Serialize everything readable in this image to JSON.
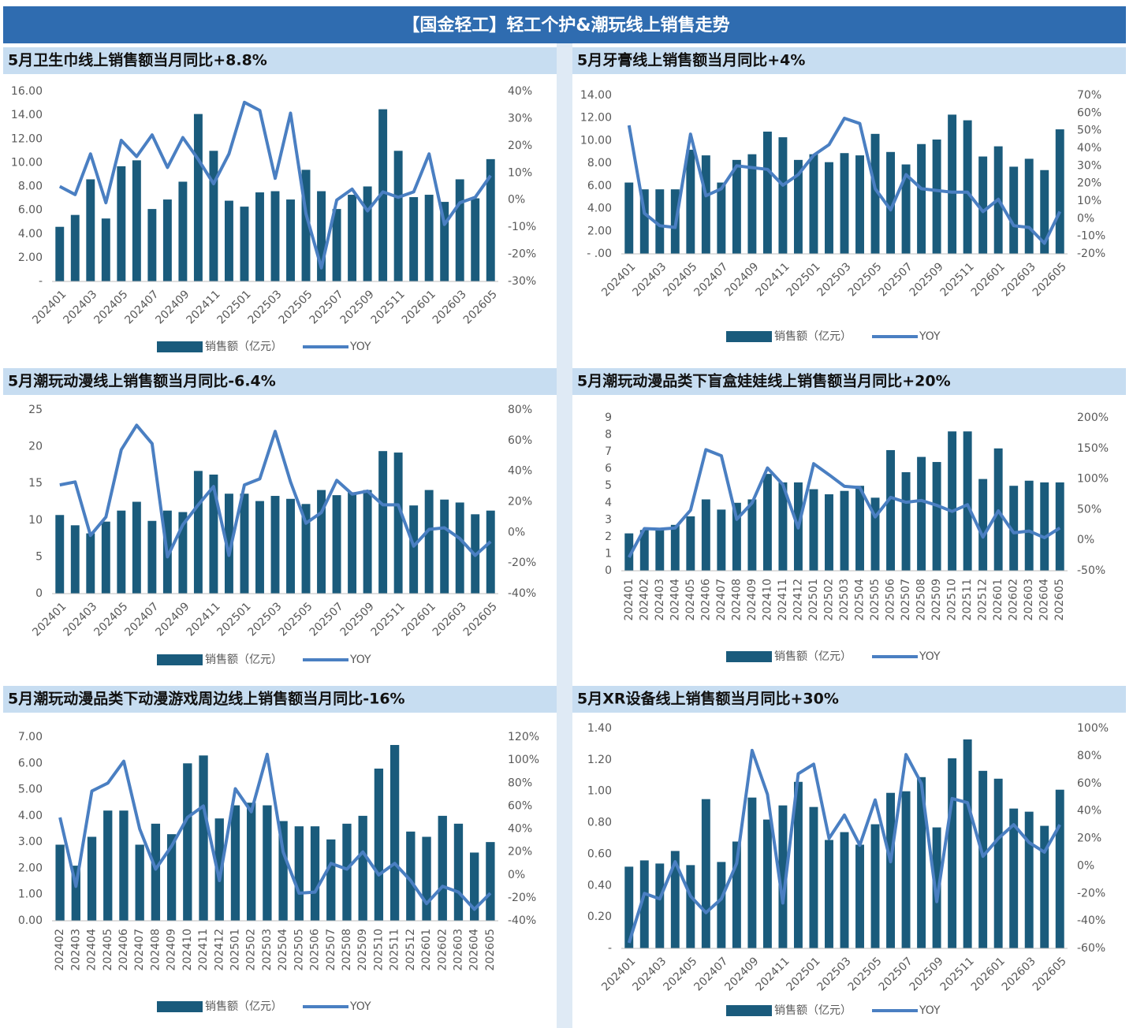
{
  "header": {
    "title": "【国金轻工】轻工个护&潮玩线上销售走势"
  },
  "chart_data": [
    {
      "type": "bar_line",
      "title": "5月卫生巾线上销售额当月同比+8.8%",
      "categories": [
        "202401",
        null,
        "202403",
        null,
        "202405",
        null,
        "202407",
        null,
        "202409",
        null,
        "202411",
        null,
        "202501",
        null,
        "202503",
        null,
        "202505",
        null,
        "202507",
        null,
        "202509",
        null,
        "202511",
        null,
        "202601",
        null,
        "202603",
        null,
        "202605"
      ],
      "series": [
        {
          "name": "销售额（亿元）",
          "color": "#1a5b7c",
          "values": [
            4.6,
            5.6,
            8.6,
            5.3,
            9.7,
            10.2,
            6.1,
            6.9,
            8.4,
            14.1,
            11.0,
            6.8,
            6.3,
            7.5,
            7.6,
            6.9,
            9.4,
            7.6,
            6.1,
            7.3,
            8.0,
            14.5,
            11.0,
            7.1,
            7.3,
            6.7,
            8.6,
            7.0,
            10.3
          ]
        },
        {
          "name": "YOY",
          "color": "#4a7fc2",
          "axis": "y2",
          "values": [
            5,
            2,
            17,
            -1,
            22,
            16,
            24,
            12,
            23,
            15,
            6,
            17,
            36,
            33,
            8,
            32,
            -5,
            -25,
            0,
            4,
            -4,
            3,
            1,
            3,
            17,
            -9,
            -1,
            1,
            9
          ]
        }
      ],
      "ylim": [
        0,
        16
      ],
      "yticks": [
        {
          "value": 0,
          "label": "-"
        },
        {
          "value": 2,
          "label": "2.00"
        },
        {
          "value": 4,
          "label": "4.00"
        },
        {
          "value": 6,
          "label": "6.00"
        },
        {
          "value": 8,
          "label": "8.00"
        },
        {
          "value": 10,
          "label": "10.00"
        },
        {
          "value": 12,
          "label": "12.00"
        },
        {
          "value": 14,
          "label": "14.00"
        },
        {
          "value": 16,
          "label": "16.00"
        }
      ],
      "y2lim": [
        -30,
        40
      ],
      "y2ticks": [
        {
          "value": -30,
          "label": "-30%"
        },
        {
          "value": -20,
          "label": "-20%"
        },
        {
          "value": -10,
          "label": "-10%"
        },
        {
          "value": 0,
          "label": "0%"
        },
        {
          "value": 10,
          "label": "10%"
        },
        {
          "value": 20,
          "label": "20%"
        },
        {
          "value": 30,
          "label": "30%"
        },
        {
          "value": 40,
          "label": "40%"
        }
      ]
    },
    {
      "type": "bar_line",
      "title": "5月牙膏线上销售额当月同比+4%",
      "categories": [
        "202401",
        null,
        "202403",
        null,
        "202405",
        null,
        "202407",
        null,
        "202409",
        null,
        "202411",
        null,
        "202501",
        null,
        "202503",
        null,
        "202505",
        null,
        "202507",
        null,
        "202509",
        null,
        "202511",
        null,
        "202601",
        null,
        "202603",
        null,
        "202605"
      ],
      "series": [
        {
          "name": "销售额（亿元）",
          "color": "#1a5b7c",
          "values": [
            6.3,
            5.7,
            5.7,
            5.7,
            9.2,
            8.7,
            6.3,
            8.3,
            8.8,
            10.8,
            10.3,
            8.3,
            8.8,
            8.1,
            8.9,
            8.7,
            10.6,
            9.0,
            7.9,
            9.7,
            10.1,
            12.3,
            11.8,
            8.6,
            9.5,
            7.7,
            8.4,
            7.4,
            11.0
          ]
        },
        {
          "name": "YOY",
          "color": "#4a7fc2",
          "axis": "y2",
          "values": [
            53,
            3,
            -4,
            -5,
            48,
            13,
            17,
            30,
            29,
            28,
            19,
            25,
            36,
            42,
            57,
            54,
            17,
            5,
            25,
            17,
            16,
            15,
            15,
            4,
            11,
            -4,
            -5,
            -14,
            4
          ]
        }
      ],
      "ylim": [
        0,
        14
      ],
      "yticks": [
        {
          "value": 0,
          "label": "- .00"
        },
        {
          "value": 2,
          "label": "2.00"
        },
        {
          "value": 4,
          "label": "4.00"
        },
        {
          "value": 6,
          "label": "6.00"
        },
        {
          "value": 8,
          "label": "8.00"
        },
        {
          "value": 10,
          "label": "10.00"
        },
        {
          "value": 12,
          "label": "12.00"
        },
        {
          "value": 14,
          "label": "14.00"
        }
      ],
      "y2lim": [
        -20,
        70
      ],
      "y2ticks": [
        {
          "value": -20,
          "label": "-20%"
        },
        {
          "value": -10,
          "label": "-10%"
        },
        {
          "value": 0,
          "label": "0%"
        },
        {
          "value": 10,
          "label": "10%"
        },
        {
          "value": 20,
          "label": "20%"
        },
        {
          "value": 30,
          "label": "30%"
        },
        {
          "value": 40,
          "label": "40%"
        },
        {
          "value": 50,
          "label": "50%"
        },
        {
          "value": 60,
          "label": "60%"
        },
        {
          "value": 70,
          "label": "70%"
        }
      ]
    },
    {
      "type": "bar_line",
      "title": "5月潮玩动漫线上销售额当月同比-6.4%",
      "categories": [
        "202401",
        null,
        "202403",
        null,
        "202405",
        null,
        "202407",
        null,
        "202409",
        null,
        "202411",
        null,
        "202501",
        null,
        "202503",
        null,
        "202505",
        null,
        "202507",
        null,
        "202509",
        null,
        "202511",
        null,
        "202601",
        null,
        "202603",
        null,
        "202605"
      ],
      "series": [
        {
          "name": "销售额（亿元）",
          "color": "#1a5b7c",
          "values": [
            10.7,
            9.3,
            8.2,
            9.8,
            11.3,
            12.5,
            9.9,
            11.3,
            11.1,
            16.7,
            16.2,
            13.6,
            13.6,
            12.6,
            13.3,
            12.9,
            12.2,
            14.1,
            13.4,
            13.8,
            14.1,
            19.4,
            19.2,
            12.0,
            14.1,
            12.8,
            12.4,
            10.8,
            11.3
          ]
        },
        {
          "name": "YOY",
          "color": "#4a7fc2",
          "axis": "y2",
          "values": [
            31,
            33,
            -2,
            10,
            54,
            70,
            58,
            -16,
            5,
            18,
            30,
            -15,
            31,
            35,
            66,
            33,
            6,
            13,
            34,
            25,
            27,
            18,
            18,
            -9,
            2,
            3,
            -4,
            -15,
            -6
          ]
        }
      ],
      "ylim": [
        0,
        25
      ],
      "yticks": [
        0,
        5,
        10,
        15,
        20,
        25
      ],
      "y2lim": [
        -40,
        80
      ],
      "y2ticks": [
        {
          "value": -40,
          "label": "-40%"
        },
        {
          "value": -20,
          "label": "-20%"
        },
        {
          "value": 0,
          "label": "0%"
        },
        {
          "value": 20,
          "label": "20%"
        },
        {
          "value": 40,
          "label": "40%"
        },
        {
          "value": 60,
          "label": "60%"
        },
        {
          "value": 80,
          "label": "80%"
        }
      ]
    },
    {
      "type": "bar_line",
      "title": "5月潮玩动漫品类下盲盒娃娃线上销售额当月同比+20%",
      "categories": [
        "202401",
        "202402",
        "202403",
        "202404",
        "202405",
        "202406",
        "202407",
        "202408",
        "202409",
        "202410",
        "202411",
        "202412",
        "202501",
        "202502",
        "202503",
        "202504",
        "202505",
        "202506",
        "202507",
        "202508",
        "202509",
        "202510",
        "202511",
        "202512",
        "202601",
        "202602",
        "202603",
        "202604",
        "202605"
      ],
      "series": [
        {
          "name": "销售额（亿元）",
          "color": "#1a5b7c",
          "values": [
            2.2,
            2.4,
            2.5,
            2.7,
            3.2,
            4.2,
            3.6,
            4.0,
            4.2,
            5.7,
            5.2,
            5.2,
            4.8,
            4.5,
            4.7,
            5.0,
            4.3,
            7.1,
            5.8,
            6.7,
            6.4,
            8.2,
            8.2,
            5.4,
            7.2,
            5.0,
            5.3,
            5.2,
            5.2
          ]
        },
        {
          "name": "YOY",
          "color": "#4a7fc2",
          "axis": "y2",
          "values": [
            -28,
            19,
            18,
            20,
            49,
            148,
            138,
            34,
            61,
            118,
            91,
            20,
            125,
            107,
            88,
            86,
            38,
            70,
            62,
            65,
            57,
            47,
            58,
            5,
            48,
            12,
            15,
            4,
            20
          ]
        }
      ],
      "ylim": [
        0,
        9
      ],
      "yticks": [
        0,
        1,
        2,
        3,
        4,
        5,
        6,
        7,
        8,
        9
      ],
      "y2lim": [
        -50,
        200
      ],
      "y2ticks": [
        {
          "value": -50,
          "label": "-50%"
        },
        {
          "value": 0,
          "label": "0%"
        },
        {
          "value": 50,
          "label": "50%"
        },
        {
          "value": 100,
          "label": "100%"
        },
        {
          "value": 150,
          "label": "150%"
        },
        {
          "value": 200,
          "label": "200%"
        }
      ]
    },
    {
      "type": "bar_line",
      "title": "5月潮玩动漫品类下动漫游戏周边线上销售额当月同比-16%",
      "categories": [
        "202402",
        "202403",
        "202404",
        "202405",
        "202406",
        "202407",
        "202408",
        "202409",
        "202410",
        "202411",
        "202412",
        "202501",
        "202502",
        "202503",
        "202504",
        "202505",
        "202506",
        "202507",
        "202508",
        "202509",
        "202510",
        "202511",
        "202512",
        "202601",
        "202602",
        "202603",
        "202604",
        "202605"
      ],
      "series": [
        {
          "name": "销售额（亿元）",
          "color": "#1a5b7c",
          "values": [
            2.9,
            2.1,
            3.2,
            4.2,
            4.2,
            2.9,
            3.7,
            3.3,
            6.0,
            6.3,
            3.9,
            4.4,
            4.5,
            4.4,
            3.8,
            3.6,
            3.6,
            3.1,
            3.7,
            4.0,
            5.8,
            6.7,
            3.4,
            3.2,
            4.0,
            3.7,
            2.6,
            3.0
          ]
        },
        {
          "name": "YOY",
          "color": "#4a7fc2",
          "axis": "y2",
          "values": [
            50,
            -10,
            73,
            80,
            99,
            40,
            5,
            25,
            50,
            60,
            -5,
            75,
            55,
            105,
            20,
            -16,
            -15,
            10,
            5,
            20,
            0,
            10,
            -5,
            -25,
            -10,
            -15,
            -30,
            -16
          ]
        }
      ],
      "ylim": [
        0,
        7
      ],
      "yticks": [
        {
          "value": 0,
          "label": "0.00"
        },
        {
          "value": 1,
          "label": "1.00"
        },
        {
          "value": 2,
          "label": "2.00"
        },
        {
          "value": 3,
          "label": "3.00"
        },
        {
          "value": 4,
          "label": "4.00"
        },
        {
          "value": 5,
          "label": "5.00"
        },
        {
          "value": 6,
          "label": "6.00"
        },
        {
          "value": 7,
          "label": "7.00"
        }
      ],
      "y2lim": [
        -40,
        120
      ],
      "y2ticks": [
        {
          "value": -40,
          "label": "-40%"
        },
        {
          "value": -20,
          "label": "-20%"
        },
        {
          "value": 0,
          "label": "0%"
        },
        {
          "value": 20,
          "label": "20%"
        },
        {
          "value": 40,
          "label": "40%"
        },
        {
          "value": 60,
          "label": "60%"
        },
        {
          "value": 80,
          "label": "80%"
        },
        {
          "value": 100,
          "label": "100%"
        },
        {
          "value": 120,
          "label": "120%"
        }
      ]
    },
    {
      "type": "bar_line",
      "title": "5月XR设备线上销售额当月同比+30%",
      "categories": [
        "202401",
        null,
        "202403",
        null,
        "202405",
        null,
        "202407",
        null,
        "202409",
        null,
        "202411",
        null,
        "202501",
        null,
        "202503",
        null,
        "202505",
        null,
        "202507",
        null,
        "202509",
        null,
        "202511",
        null,
        "202601",
        null,
        "202603",
        null,
        "202605"
      ],
      "series": [
        {
          "name": "销售额（亿元）",
          "color": "#1a5b7c",
          "values": [
            0.52,
            0.56,
            0.54,
            0.62,
            0.53,
            0.95,
            0.55,
            0.68,
            0.96,
            0.82,
            0.91,
            1.06,
            0.9,
            0.69,
            0.74,
            0.66,
            0.79,
            0.99,
            1.0,
            1.09,
            0.77,
            1.21,
            1.33,
            1.13,
            1.08,
            0.89,
            0.87,
            0.78,
            1.01
          ]
        },
        {
          "name": "YOY",
          "color": "#4a7fc2",
          "axis": "y2",
          "values": [
            -56,
            -20,
            -24,
            3,
            -22,
            -34,
            -24,
            2,
            84,
            52,
            -27,
            67,
            74,
            20,
            37,
            15,
            48,
            3,
            81,
            60,
            -26,
            49,
            46,
            7,
            20,
            30,
            17,
            10,
            30
          ]
        }
      ],
      "ylim": [
        0,
        1.4
      ],
      "yticks": [
        {
          "value": 0,
          "label": "-"
        },
        {
          "value": 0.2,
          "label": "0.20"
        },
        {
          "value": 0.4,
          "label": "0.40"
        },
        {
          "value": 0.6,
          "label": "0.60"
        },
        {
          "value": 0.8,
          "label": "0.80"
        },
        {
          "value": 1.0,
          "label": "1.00"
        },
        {
          "value": 1.2,
          "label": "1.20"
        },
        {
          "value": 1.4,
          "label": "1.40"
        }
      ],
      "y2lim": [
        -60,
        100
      ],
      "y2ticks": [
        {
          "value": -60,
          "label": "-60%"
        },
        {
          "value": -40,
          "label": "-40%"
        },
        {
          "value": -20,
          "label": "-20%"
        },
        {
          "value": 0,
          "label": "0%"
        },
        {
          "value": 20,
          "label": "20%"
        },
        {
          "value": 40,
          "label": "40%"
        },
        {
          "value": 60,
          "label": "60%"
        },
        {
          "value": 80,
          "label": "80%"
        },
        {
          "value": 100,
          "label": "100%"
        }
      ]
    }
  ]
}
